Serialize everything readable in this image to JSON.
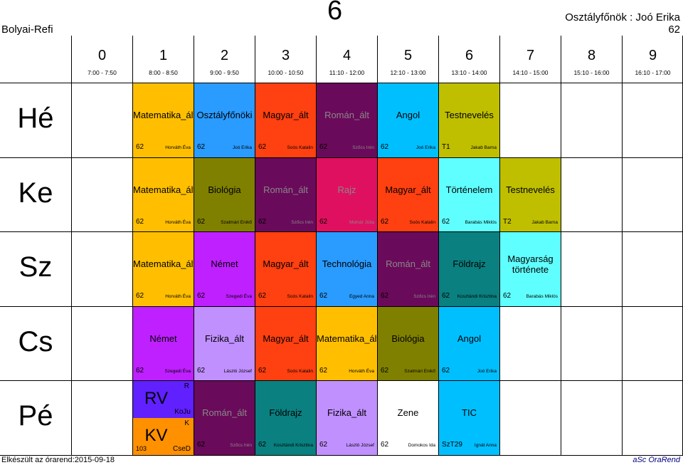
{
  "header": {
    "school": "Bolyai-Refi",
    "class_big": "6",
    "form_teacher": "Osztályfőnök : Joó Erika",
    "room": "62"
  },
  "periods": [
    {
      "num": "0",
      "time": "7:00 - 7:50"
    },
    {
      "num": "1",
      "time": "8:00 - 8:50"
    },
    {
      "num": "2",
      "time": "9:00 - 9:50"
    },
    {
      "num": "3",
      "time": "10:00 - 10:50"
    },
    {
      "num": "4",
      "time": "11:10 - 12:00"
    },
    {
      "num": "5",
      "time": "12:10 - 13:00"
    },
    {
      "num": "6",
      "time": "13:10 - 14:00"
    },
    {
      "num": "7",
      "time": "14:10 - 15:00"
    },
    {
      "num": "8",
      "time": "15:10 - 16:00"
    },
    {
      "num": "9",
      "time": "16:10 - 17:00"
    }
  ],
  "days": [
    "Hé",
    "Ke",
    "Sz",
    "Cs",
    "Pé"
  ],
  "lessons": {
    "he": [
      {
        "subject": "Matematika_ált",
        "room": "62",
        "teacher": "Horváth Éva",
        "color": "#FFBF00"
      },
      {
        "subject": "Osztályfőnöki",
        "room": "62",
        "teacher": "Joó Erika",
        "color": "#2A9BFF"
      },
      {
        "subject": "Magyar_ált",
        "room": "62",
        "teacher": "Soós Katalin",
        "color": "#FF4010"
      },
      {
        "subject": "Román_ált",
        "room": "62",
        "teacher": "Szőcs Irén",
        "color": "#6A0A5A"
      },
      {
        "subject": "Angol",
        "room": "62",
        "teacher": "Joó Erika",
        "color": "#00BFFF"
      },
      {
        "subject": "Testnevelés",
        "room": "T1",
        "teacher": "Jakab Barna",
        "color": "#BFBF00"
      }
    ],
    "ke": [
      {
        "subject": "Matematika_ált",
        "room": "62",
        "teacher": "Horváth Éva",
        "color": "#FFBF00"
      },
      {
        "subject": "Biológia",
        "room": "62",
        "teacher": "Szatmári Enikő",
        "color": "#808000"
      },
      {
        "subject": "Román_ált",
        "room": "62",
        "teacher": "Szőcs Irén",
        "color": "#6A0A5A"
      },
      {
        "subject": "Rajz",
        "room": "62",
        "teacher": "Molnár Júlia",
        "color": "#E01060"
      },
      {
        "subject": "Magyar_ált",
        "room": "62",
        "teacher": "Soós Katalin",
        "color": "#FF4010"
      },
      {
        "subject": "Történelem",
        "room": "62",
        "teacher": "Barabás Miklós",
        "color": "#60FFFF"
      },
      {
        "subject": "Testnevelés",
        "room": "T2",
        "teacher": "Jakab Barna",
        "color": "#BFBF00"
      }
    ],
    "sz": [
      {
        "subject": "Matematika_ált",
        "room": "62",
        "teacher": "Horváth Éva",
        "color": "#FFBF00"
      },
      {
        "subject": "Német",
        "room": "62",
        "teacher": "Szegedi Éva",
        "color": "#BF20FF"
      },
      {
        "subject": "Magyar_ált",
        "room": "62",
        "teacher": "Soós Katalin",
        "color": "#FF4010"
      },
      {
        "subject": "Technológia",
        "room": "62",
        "teacher": "Egyed Anna",
        "color": "#2A9BFF"
      },
      {
        "subject": "Román_ált",
        "room": "62",
        "teacher": "Szőcs Irén",
        "color": "#6A0A5A"
      },
      {
        "subject": "Földrajz",
        "room": "62",
        "teacher": "Kosztándi Krisztina",
        "color": "#0A8080"
      },
      {
        "subject": "Magyarság története",
        "room": "62",
        "teacher": "Barabás Miklós",
        "color": "#60FFFF"
      }
    ],
    "cs": [
      {
        "subject": "Német",
        "room": "62",
        "teacher": "Szegedi Éva",
        "color": "#BF20FF"
      },
      {
        "subject": "Fizika_ált",
        "room": "62",
        "teacher": "László József",
        "color": "#C090FF"
      },
      {
        "subject": "Magyar_ált",
        "room": "62",
        "teacher": "Soós Katalin",
        "color": "#FF4010"
      },
      {
        "subject": "Matematika_ált",
        "room": "62",
        "teacher": "Horváth Éva",
        "color": "#FFBF00"
      },
      {
        "subject": "Biológia",
        "room": "62",
        "teacher": "Szatmári Enikő",
        "color": "#808000"
      },
      {
        "subject": "Angol",
        "room": "62",
        "teacher": "Joó Erika",
        "color": "#00BFFF"
      }
    ],
    "pe_split": {
      "top": {
        "subject": "RV",
        "group": "R",
        "teacher": "KoJu",
        "color": "#6020FF"
      },
      "bottom": {
        "subject": "KV",
        "group": "K",
        "room": "103",
        "teacher": "CseD",
        "color": "#FF9000"
      }
    },
    "pe": [
      {
        "subject": "Román_ált",
        "room": "62",
        "teacher": "Szőcs Irén",
        "color": "#6A0A5A"
      },
      {
        "subject": "Földrajz",
        "room": "62",
        "teacher": "Kosztándi Krisztina",
        "color": "#0A8080"
      },
      {
        "subject": "Fizika_ált",
        "room": "62",
        "teacher": "László József",
        "color": "#C090FF"
      },
      {
        "subject": "Zene",
        "room": "62",
        "teacher": "Domokos Ida",
        "color": "#FFFFFF"
      },
      {
        "subject": "TIC",
        "room": "SzT29",
        "teacher": "Ignát Anna",
        "color": "#00BFFF"
      }
    ]
  },
  "footer": {
    "generated": "Elkészült az órarend:2015-09-18",
    "brand": "aSc ÓraRend"
  }
}
